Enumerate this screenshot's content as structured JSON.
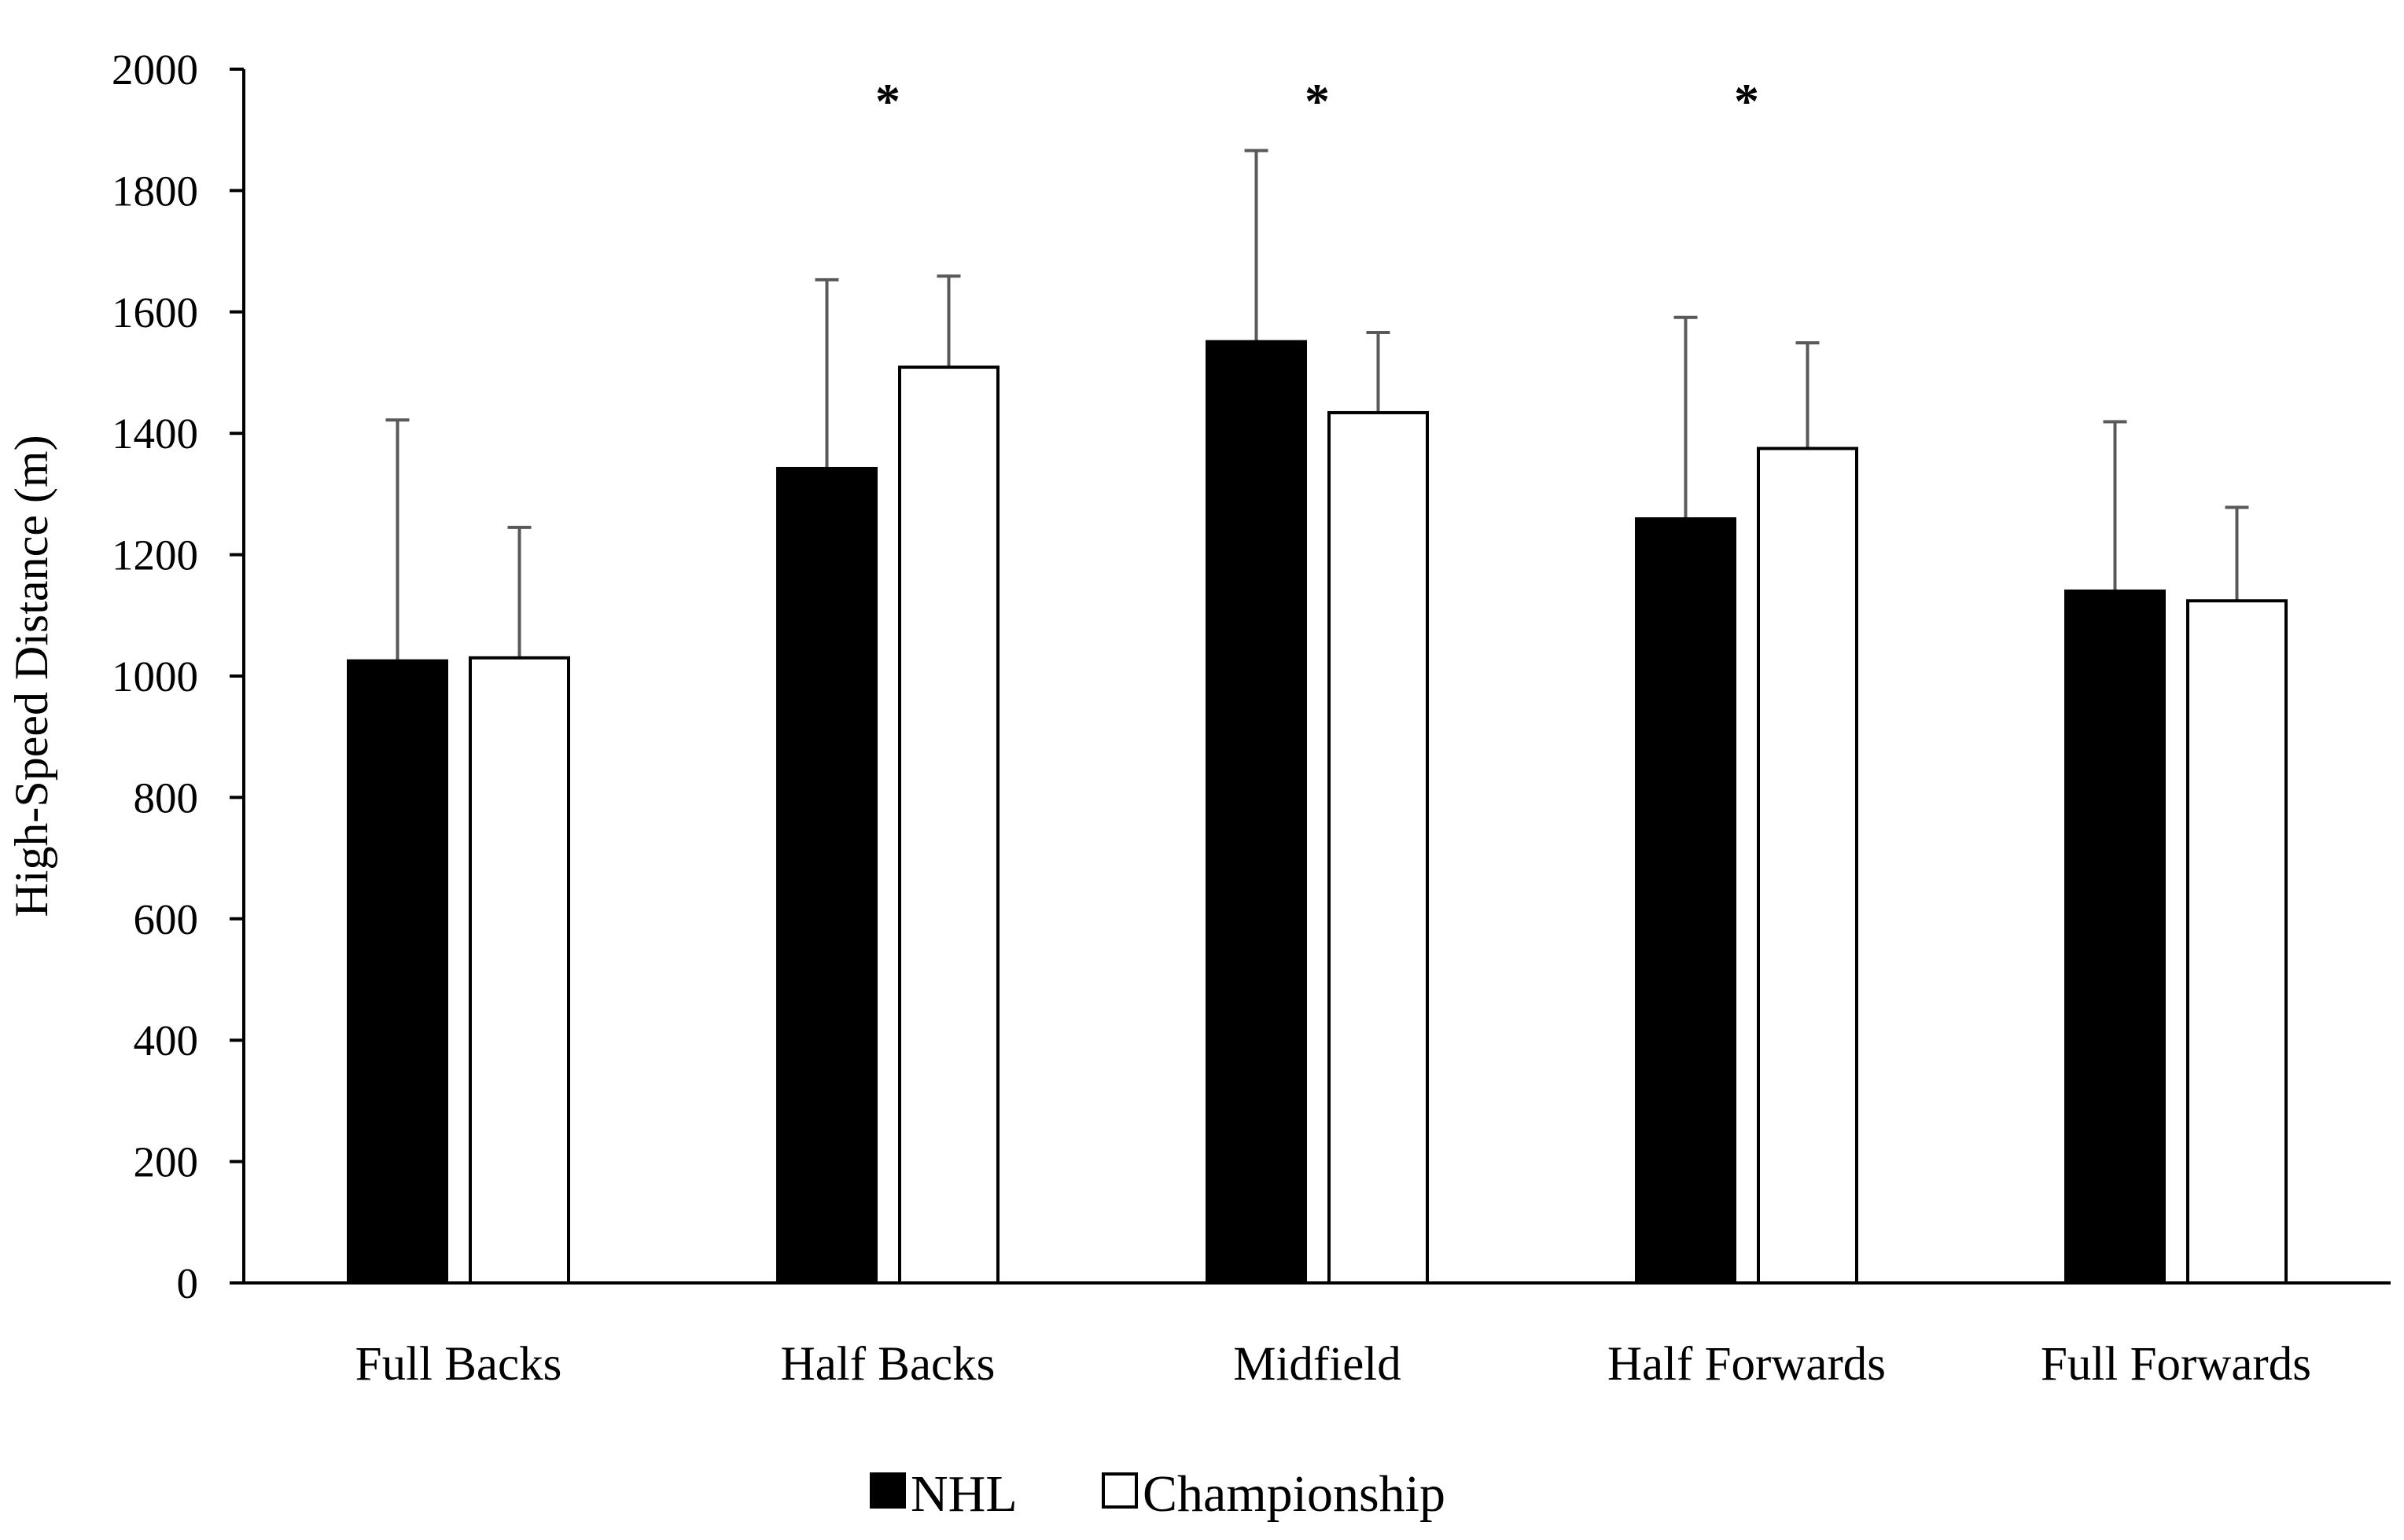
{
  "chart_data": {
    "type": "bar",
    "title": "",
    "xlabel": "",
    "ylabel": "High-Speed Distance (m)",
    "ylim": [
      0,
      2000
    ],
    "yticks": [
      0,
      200,
      400,
      600,
      800,
      1000,
      1200,
      1400,
      1600,
      1800,
      2000
    ],
    "categories": [
      "Full Backs",
      "Half Backs",
      "Midfield",
      "Half Forwards",
      "Full Forwards"
    ],
    "series": [
      {
        "name": "NHL",
        "color": "#000000",
        "values": [
          1025,
          1342,
          1551,
          1259,
          1140
        ],
        "error": [
          397,
          311,
          315,
          332,
          279
        ]
      },
      {
        "name": "Championship",
        "color": "#ffffff",
        "values": [
          1030,
          1509,
          1434,
          1375,
          1124
        ],
        "error": [
          215,
          150,
          132,
          174,
          154
        ]
      }
    ],
    "annotations": [
      {
        "category": "Half Backs",
        "text": "*"
      },
      {
        "category": "Midfield",
        "text": "*"
      },
      {
        "category": "Half Forwards",
        "text": "*"
      }
    ],
    "grid": false,
    "legend_position": "bottom-center"
  }
}
